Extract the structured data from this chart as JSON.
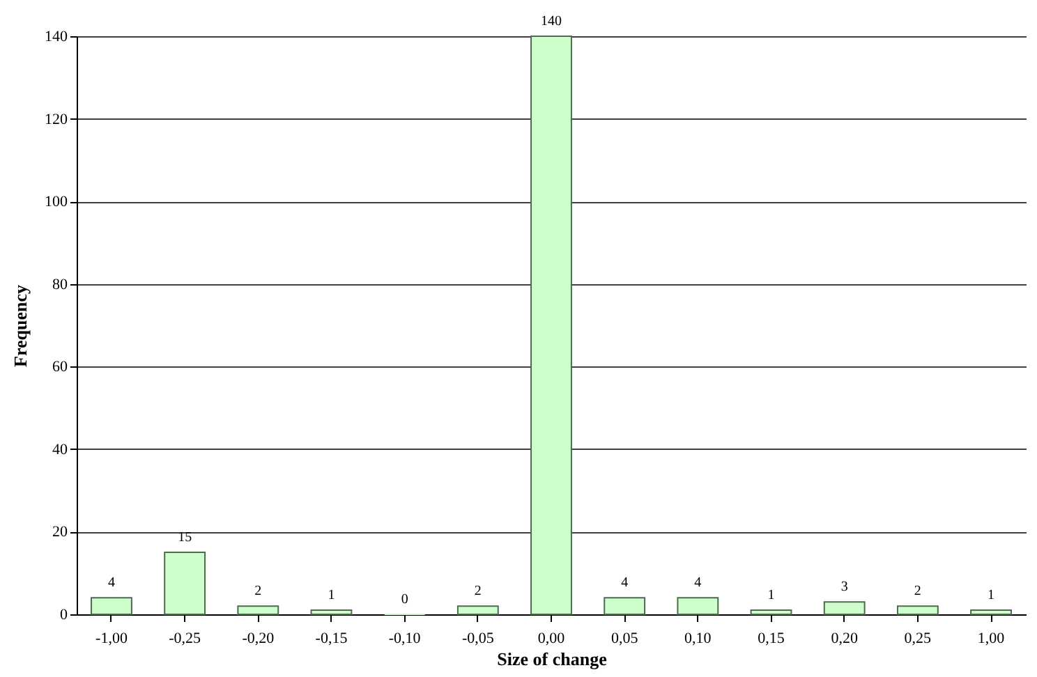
{
  "chart_data": {
    "type": "bar",
    "xlabel": "Size of change",
    "ylabel": "Frequency",
    "categories": [
      "-1,00",
      "-0,25",
      "-0,20",
      "-0,15",
      "-0,10",
      "-0,05",
      "0,00",
      "0,05",
      "0,10",
      "0,15",
      "0,20",
      "0,25",
      "1,00"
    ],
    "values": [
      4,
      15,
      2,
      1,
      0,
      2,
      140,
      4,
      4,
      1,
      3,
      2,
      1
    ],
    "color": "#ccffcc",
    "ylim": [
      0,
      140
    ],
    "yticks": [
      0,
      20,
      40,
      60,
      80,
      100,
      120,
      140
    ],
    "grid": "y",
    "data_labels": true
  }
}
